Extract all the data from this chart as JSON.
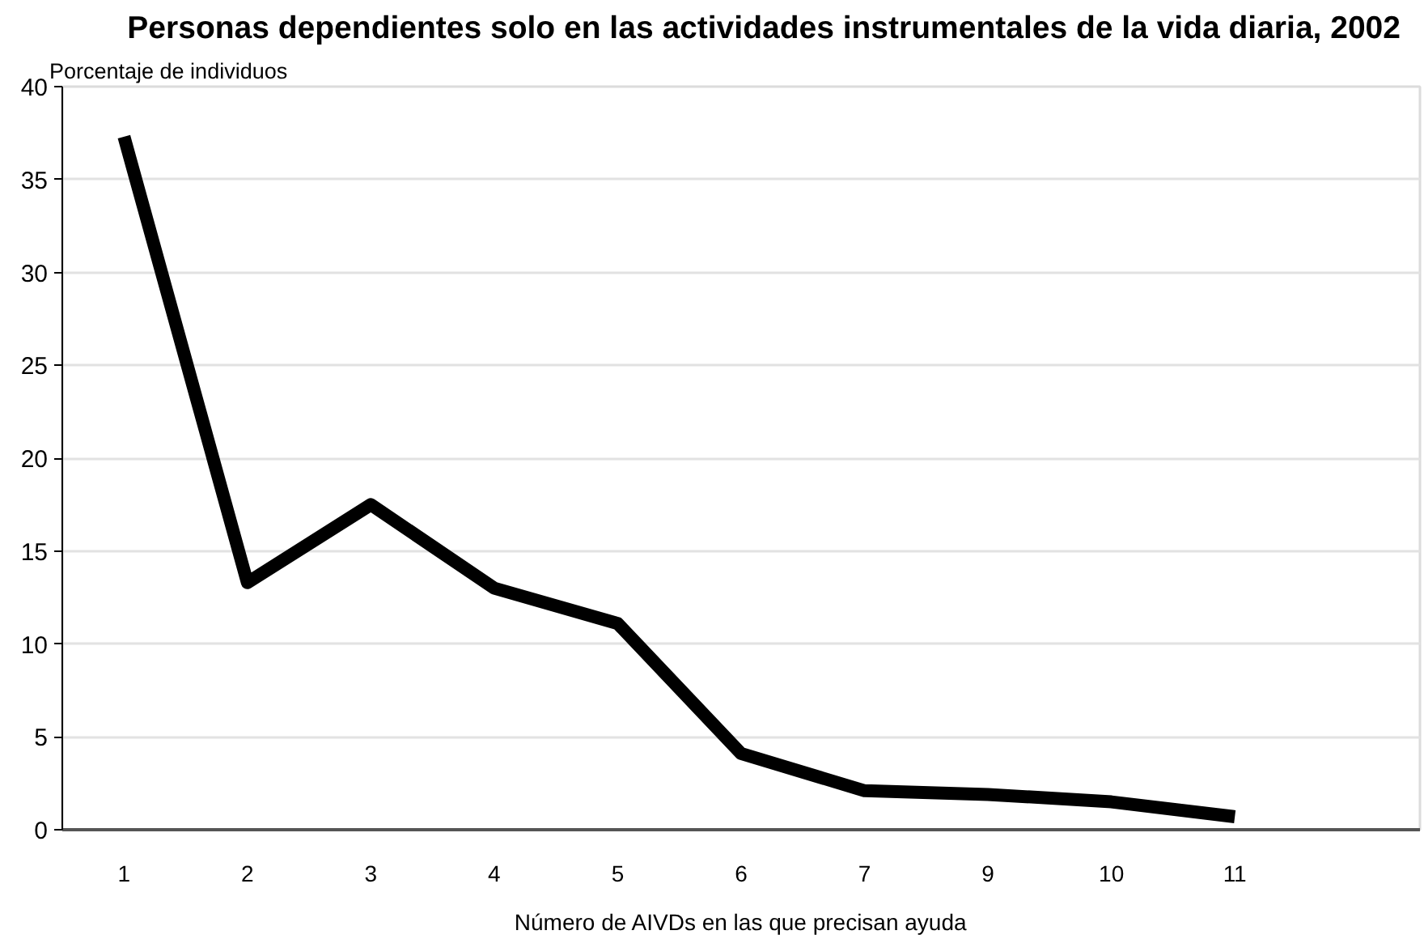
{
  "chart_data": {
    "type": "line",
    "title": "Personas dependientes solo en las actividades instrumentales de la vida diaria, 2002",
    "xlabel": "Número de AIVDs en las que precisan ayuda",
    "ylabel": "Porcentaje de individuos",
    "categories": [
      "1",
      "2",
      "3",
      "4",
      "5",
      "6",
      "7",
      "9",
      "10",
      "11",
      null
    ],
    "series": [
      {
        "color": "#000000",
        "values": [
          37.3,
          13.3,
          17.5,
          13.0,
          11.1,
          4.1,
          2.1,
          1.9,
          1.5,
          0.7,
          null
        ]
      }
    ],
    "ylim": [
      0,
      40
    ],
    "yticks": [
      0,
      5,
      10,
      15,
      20,
      25,
      30,
      35,
      40
    ],
    "grid": "y",
    "line_style": "solid"
  }
}
